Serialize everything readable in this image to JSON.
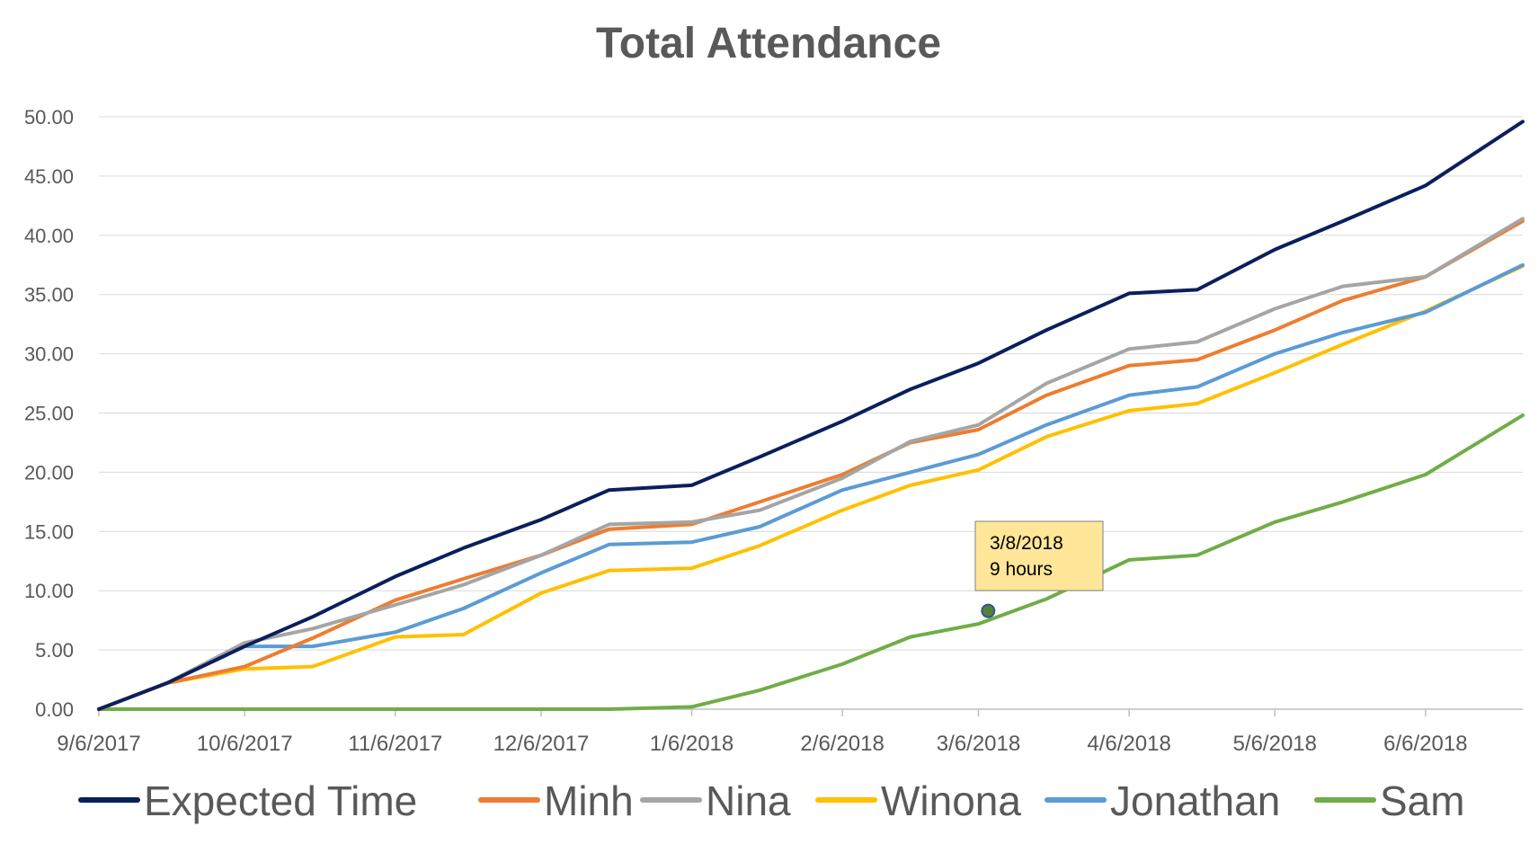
{
  "chart_data": {
    "type": "line",
    "title": "Total Attendance",
    "xlabel": "",
    "ylabel": "",
    "x_range": [
      "9/6/2017",
      "6/26/2018"
    ],
    "ylim": [
      0,
      50
    ],
    "y_ticks": [
      "0.00",
      "5.00",
      "10.00",
      "15.00",
      "20.00",
      "25.00",
      "30.00",
      "35.00",
      "40.00",
      "45.00",
      "50.00"
    ],
    "x_ticks": [
      "9/6/2017",
      "10/6/2017",
      "11/6/2017",
      "12/6/2017",
      "1/6/2018",
      "2/6/2018",
      "3/6/2018",
      "4/6/2018",
      "5/6/2018",
      "6/6/2018"
    ],
    "grid": "horizontal",
    "legend_position": "bottom",
    "series": [
      {
        "name": "Expected Time",
        "color": "#0B1F5C",
        "points": [
          [
            "9/6/2017",
            0
          ],
          [
            "9/20/2017",
            2.2
          ],
          [
            "10/6/2017",
            5.3
          ],
          [
            "10/20/2017",
            7.8
          ],
          [
            "11/6/2017",
            11.2
          ],
          [
            "11/20/2017",
            13.6
          ],
          [
            "12/6/2017",
            16.0
          ],
          [
            "12/20/2017",
            18.5
          ],
          [
            "1/6/2018",
            18.9
          ],
          [
            "1/20/2018",
            21.3
          ],
          [
            "2/6/2018",
            24.3
          ],
          [
            "2/20/2018",
            27.0
          ],
          [
            "3/6/2018",
            29.2
          ],
          [
            "3/20/2018",
            32.0
          ],
          [
            "4/6/2018",
            35.1
          ],
          [
            "4/20/2018",
            35.4
          ],
          [
            "5/6/2018",
            38.8
          ],
          [
            "5/20/2018",
            41.2
          ],
          [
            "6/6/2018",
            44.2
          ],
          [
            "6/26/2018",
            49.6
          ]
        ]
      },
      {
        "name": "Minh",
        "color": "#ED7D31",
        "points": [
          [
            "9/6/2017",
            0
          ],
          [
            "9/20/2017",
            2.2
          ],
          [
            "10/6/2017",
            3.6
          ],
          [
            "10/20/2017",
            6.0
          ],
          [
            "11/6/2017",
            9.2
          ],
          [
            "11/20/2017",
            11.0
          ],
          [
            "12/6/2017",
            13.0
          ],
          [
            "12/20/2017",
            15.2
          ],
          [
            "1/6/2018",
            15.6
          ],
          [
            "1/20/2018",
            17.5
          ],
          [
            "2/6/2018",
            19.8
          ],
          [
            "2/20/2018",
            22.5
          ],
          [
            "3/6/2018",
            23.6
          ],
          [
            "3/20/2018",
            26.5
          ],
          [
            "4/6/2018",
            29.0
          ],
          [
            "4/20/2018",
            29.5
          ],
          [
            "5/6/2018",
            32.0
          ],
          [
            "5/20/2018",
            34.5
          ],
          [
            "6/6/2018",
            36.5
          ],
          [
            "6/26/2018",
            41.2
          ]
        ]
      },
      {
        "name": "Nina",
        "color": "#A5A5A5",
        "points": [
          [
            "9/6/2017",
            0
          ],
          [
            "9/20/2017",
            2.2
          ],
          [
            "10/6/2017",
            5.6
          ],
          [
            "10/20/2017",
            6.8
          ],
          [
            "11/6/2017",
            8.8
          ],
          [
            "11/20/2017",
            10.5
          ],
          [
            "12/6/2017",
            13.0
          ],
          [
            "12/20/2017",
            15.6
          ],
          [
            "1/6/2018",
            15.8
          ],
          [
            "1/20/2018",
            16.8
          ],
          [
            "2/6/2018",
            19.5
          ],
          [
            "2/20/2018",
            22.6
          ],
          [
            "3/6/2018",
            24.0
          ],
          [
            "3/20/2018",
            27.5
          ],
          [
            "4/6/2018",
            30.4
          ],
          [
            "4/20/2018",
            31.0
          ],
          [
            "5/6/2018",
            33.8
          ],
          [
            "5/20/2018",
            35.7
          ],
          [
            "6/6/2018",
            36.5
          ],
          [
            "6/26/2018",
            41.4
          ]
        ]
      },
      {
        "name": "Winona",
        "color": "#FFC000",
        "points": [
          [
            "9/6/2017",
            0
          ],
          [
            "9/20/2017",
            2.2
          ],
          [
            "10/6/2017",
            3.4
          ],
          [
            "10/20/2017",
            3.6
          ],
          [
            "11/6/2017",
            6.1
          ],
          [
            "11/20/2017",
            6.3
          ],
          [
            "12/6/2017",
            9.8
          ],
          [
            "12/20/2017",
            11.7
          ],
          [
            "1/6/2018",
            11.9
          ],
          [
            "1/20/2018",
            13.8
          ],
          [
            "2/6/2018",
            16.8
          ],
          [
            "2/20/2018",
            18.9
          ],
          [
            "3/6/2018",
            20.2
          ],
          [
            "3/20/2018",
            23.0
          ],
          [
            "4/6/2018",
            25.2
          ],
          [
            "4/20/2018",
            25.8
          ],
          [
            "5/6/2018",
            28.4
          ],
          [
            "5/20/2018",
            30.8
          ],
          [
            "6/6/2018",
            33.6
          ],
          [
            "6/26/2018",
            37.4
          ]
        ]
      },
      {
        "name": "Jonathan",
        "color": "#5B9BD5",
        "points": [
          [
            "9/6/2017",
            0
          ],
          [
            "9/20/2017",
            2.2
          ],
          [
            "10/6/2017",
            5.3
          ],
          [
            "10/20/2017",
            5.3
          ],
          [
            "11/6/2017",
            6.5
          ],
          [
            "11/20/2017",
            8.5
          ],
          [
            "12/6/2017",
            11.5
          ],
          [
            "12/20/2017",
            13.9
          ],
          [
            "1/6/2018",
            14.1
          ],
          [
            "1/20/2018",
            15.4
          ],
          [
            "2/6/2018",
            18.5
          ],
          [
            "2/20/2018",
            20.0
          ],
          [
            "3/6/2018",
            21.5
          ],
          [
            "3/20/2018",
            24.0
          ],
          [
            "4/6/2018",
            26.5
          ],
          [
            "4/20/2018",
            27.2
          ],
          [
            "5/6/2018",
            30.0
          ],
          [
            "5/20/2018",
            31.8
          ],
          [
            "6/6/2018",
            33.5
          ],
          [
            "6/26/2018",
            37.5
          ]
        ]
      },
      {
        "name": "Sam",
        "color": "#70AD47",
        "points": [
          [
            "9/6/2017",
            0
          ],
          [
            "12/20/2017",
            0
          ],
          [
            "1/6/2018",
            0.2
          ],
          [
            "1/20/2018",
            1.6
          ],
          [
            "2/6/2018",
            3.8
          ],
          [
            "2/20/2018",
            6.1
          ],
          [
            "3/6/2018",
            7.2
          ],
          [
            "3/20/2018",
            9.3
          ],
          [
            "4/6/2018",
            12.6
          ],
          [
            "4/20/2018",
            13.0
          ],
          [
            "5/6/2018",
            15.8
          ],
          [
            "5/20/2018",
            17.5
          ],
          [
            "6/6/2018",
            19.8
          ],
          [
            "6/26/2018",
            24.8
          ]
        ]
      }
    ],
    "callout": {
      "date": "3/8/2018",
      "value": 8.3,
      "line1": "3/8/2018",
      "line2": "9 hours",
      "fill": "#FFE699",
      "marker_fill": "#548235"
    }
  }
}
